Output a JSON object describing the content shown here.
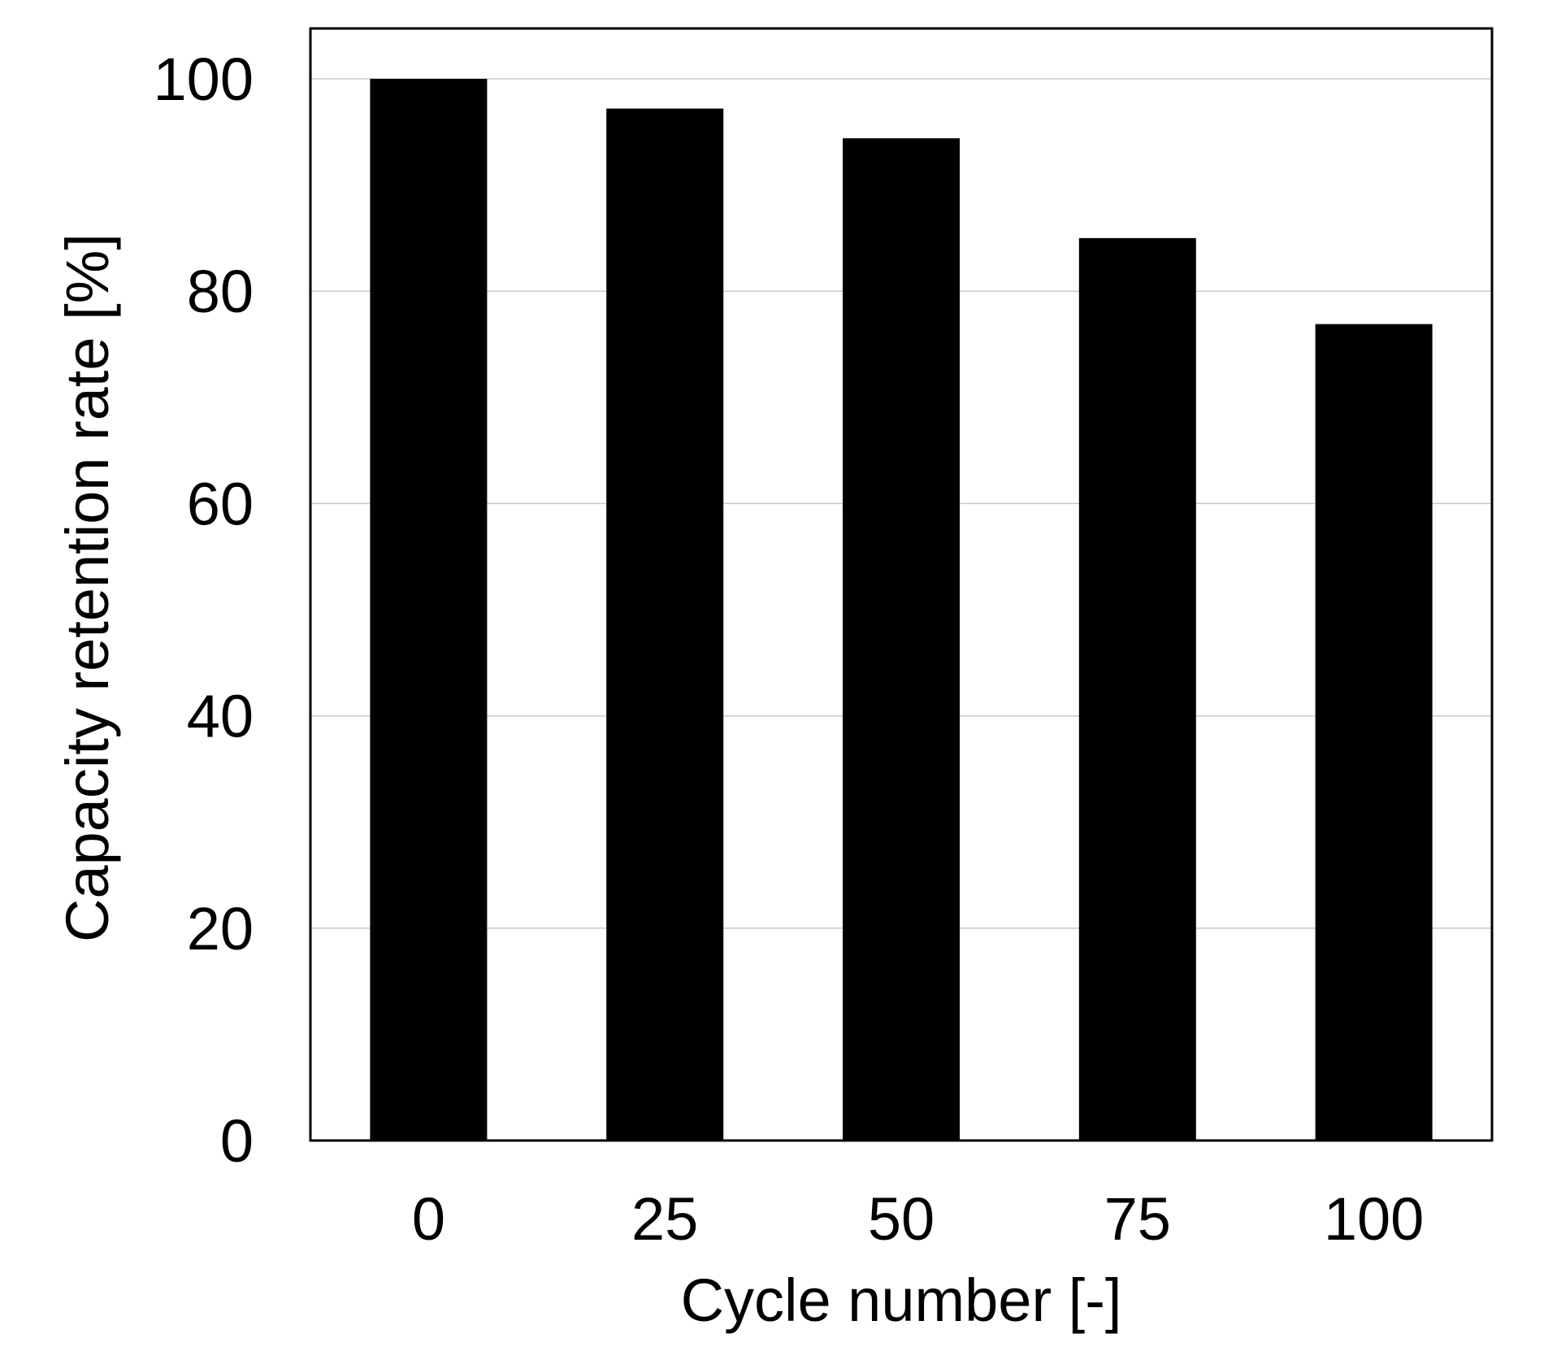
{
  "chart_data": {
    "type": "bar",
    "categories": [
      "0",
      "25",
      "50",
      "75",
      "100"
    ],
    "values": [
      100,
      97.2,
      94.4,
      85.0,
      76.9
    ],
    "xlabel": "Cycle number [-]",
    "ylabel": "Capacity retention rate [%]",
    "ylim": [
      0,
      105
    ],
    "yticks": [
      0,
      20,
      40,
      60,
      80,
      100
    ],
    "grid": true,
    "bar_color": "#000000",
    "grid_color": "#c8c8c8"
  }
}
